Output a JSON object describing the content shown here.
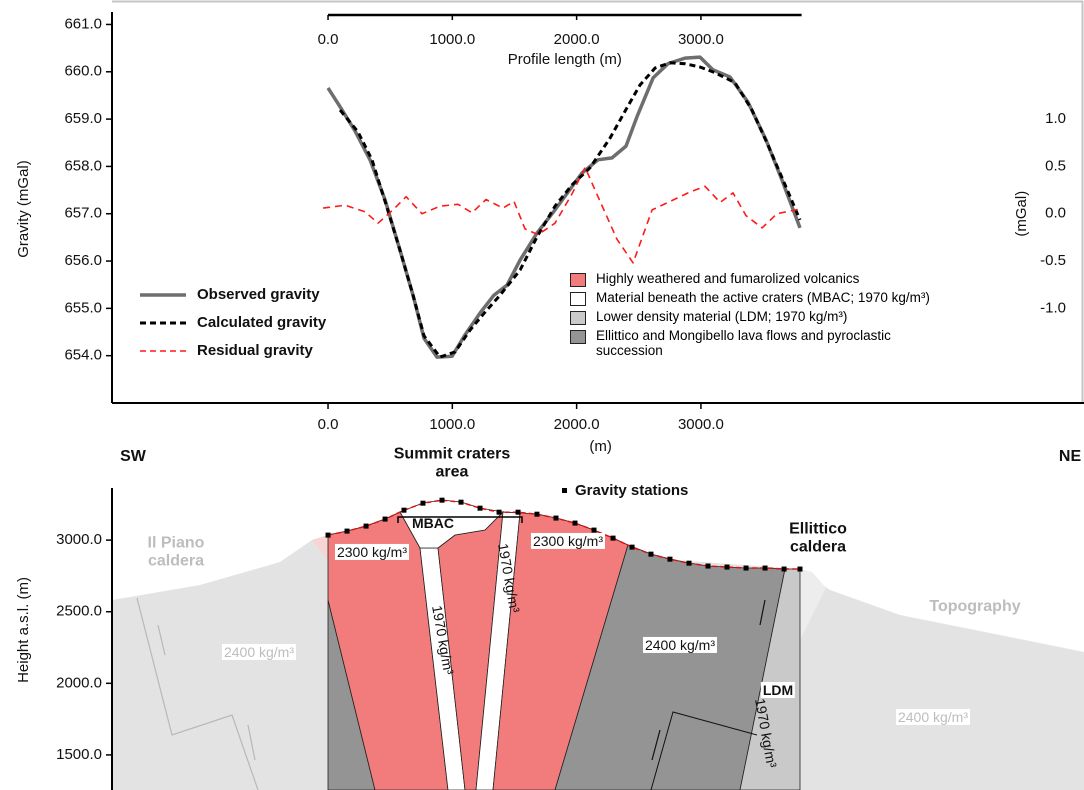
{
  "chart_data": [
    {
      "type": "line",
      "y_label": "Gravity (mGal)",
      "y2_label": "(mGal)",
      "x_label": "(m)",
      "x2_label": "Profile length (m)",
      "xlim": [
        -1738,
        6082
      ],
      "xticks": [
        {
          "value": 0,
          "label": "0.0"
        },
        {
          "value": 1000,
          "label": "1000.0"
        },
        {
          "value": 2000,
          "label": "2000.0"
        },
        {
          "value": 3000,
          "label": "3000.0"
        }
      ],
      "x2lim": [
        0,
        3810
      ],
      "x2ticks": [
        {
          "value": 0,
          "label": "0.0"
        },
        {
          "value": 1000,
          "label": "1000.0"
        },
        {
          "value": 2000,
          "label": "2000.0"
        },
        {
          "value": 3000,
          "label": "3000.0"
        }
      ],
      "ylim": [
        653,
        661.2
      ],
      "yticks": [
        {
          "value": 661,
          "label": "661.0"
        },
        {
          "value": 660,
          "label": "660.0"
        },
        {
          "value": 659,
          "label": "659.0"
        },
        {
          "value": 658,
          "label": "658.0"
        },
        {
          "value": 657,
          "label": "657.0"
        },
        {
          "value": 656,
          "label": "656.0"
        },
        {
          "value": 655,
          "label": "655.0"
        },
        {
          "value": 654,
          "label": "654.0"
        }
      ],
      "y2lim": [
        -2,
        2.1
      ],
      "y2ticks": [
        {
          "value": 1,
          "label": "1.0"
        },
        {
          "value": 0.5,
          "label": "0.5"
        },
        {
          "value": 0,
          "label": "0.0"
        },
        {
          "value": -0.5,
          "label": "-0.5"
        },
        {
          "value": -1,
          "label": "-1.0"
        }
      ],
      "legend": "lower left",
      "series": [
        {
          "name": "Observed gravity",
          "color": "#6e6e6e",
          "dashed": false,
          "x": [
            0,
            97,
            217,
            338,
            459,
            579,
            684,
            772,
            877,
            998,
            1102,
            1223,
            1335,
            1440,
            1545,
            1681,
            1826,
            2043,
            2172,
            2285,
            2397,
            2486,
            2615,
            2735,
            2872,
            2993,
            3097,
            3234,
            3379,
            3524,
            3652,
            3797
          ],
          "values": [
            659.66,
            659.26,
            658.75,
            658.14,
            657.29,
            656.23,
            655.28,
            654.37,
            653.97,
            653.99,
            654.44,
            654.9,
            655.28,
            655.49,
            656.02,
            656.59,
            657.08,
            657.86,
            658.14,
            658.18,
            658.43,
            659.05,
            659.87,
            660.17,
            660.29,
            660.31,
            660.04,
            659.89,
            659.36,
            658.56,
            657.71,
            656.7
          ]
        },
        {
          "name": "Calculated gravity",
          "color": "#000000",
          "dashed": true,
          "x": [
            97,
            241,
            354,
            467,
            579,
            684,
            772,
            901,
            1022,
            1142,
            1263,
            1384,
            1545,
            1681,
            1826,
            1963,
            2108,
            2269,
            2405,
            2510,
            2631,
            2751,
            2872,
            2993,
            3113,
            3274,
            3411,
            3540,
            3677,
            3797
          ],
          "values": [
            659.19,
            658.73,
            658.14,
            657.19,
            656.23,
            655.28,
            654.42,
            653.97,
            654.08,
            654.54,
            654.92,
            655.28,
            655.81,
            656.51,
            657.16,
            657.61,
            657.97,
            658.6,
            659.24,
            659.72,
            660.08,
            660.19,
            660.17,
            660.1,
            659.98,
            659.77,
            659.19,
            658.45,
            657.61,
            656.87
          ]
        },
        {
          "name": "Residual gravity",
          "color": "#ff1a1a",
          "dashed": true,
          "axis": "y2",
          "x": [
            -40,
            137,
            298,
            402,
            523,
            628,
            756,
            901,
            1046,
            1158,
            1271,
            1408,
            1496,
            1585,
            1689,
            1826,
            1963,
            2068,
            2172,
            2325,
            2454,
            2607,
            2735,
            2912,
            3033,
            3154,
            3258,
            3363,
            3492,
            3612,
            3797
          ],
          "values": [
            0.06,
            0.09,
            0.02,
            -0.1,
            0.04,
            0.18,
            0,
            0.08,
            0.1,
            0.01,
            0.15,
            0.06,
            0.13,
            -0.16,
            -0.22,
            -0.1,
            0.21,
            0.49,
            0.18,
            -0.27,
            -0.52,
            0.04,
            0.12,
            0.23,
            0.29,
            0.12,
            0.22,
            -0.02,
            -0.15,
            0,
            0.05
          ]
        }
      ]
    },
    {
      "type": "cross-section",
      "y_label": "Height a.s.l. (m)",
      "xlim": [
        -1738,
        6082
      ],
      "ylim": [
        1255,
        3350
      ],
      "yticks": [
        {
          "value": 3000,
          "label": "3000.0"
        },
        {
          "value": 2500,
          "label": "2500.0"
        },
        {
          "value": 2000,
          "label": "2000.0"
        },
        {
          "value": 1500,
          "label": "1500.0"
        }
      ],
      "stations": {
        "name": "Gravity stations",
        "line_color": "#e01010",
        "marker_color": "#000000",
        "x": [
          0,
          153,
          306,
          459,
          611,
          764,
          917,
          1070,
          1223,
          1376,
          1529,
          1681,
          1834,
          1987,
          2140,
          2293,
          2446,
          2598,
          2751,
          2904,
          3057,
          3210,
          3363,
          3516,
          3669,
          3797
        ],
        "values": [
          3035,
          3063,
          3098,
          3147,
          3209,
          3258,
          3279,
          3265,
          3223,
          3195,
          3195,
          3181,
          3154,
          3119,
          3070,
          3014,
          2951,
          2902,
          2867,
          2839,
          2819,
          2812,
          2805,
          2805,
          2798,
          2798
        ]
      },
      "legend": [
        {
          "label": "Highly weathered and fumarolized volcanics",
          "color": "#f27c7c"
        },
        {
          "label": "Material beneath the active craters (MBAC; 1970 kg/m³)",
          "color": "#ffffff"
        },
        {
          "label": "Lower density material (LDM; 1970 kg/m³)",
          "color": "#c9c9c9"
        },
        {
          "label": "Ellittico and Mongibello lava flows and pyroclastic succession",
          "color": "#949494"
        }
      ],
      "annotations": [
        "SW",
        "NE",
        "Summit craters area",
        "MBAC",
        "Ellittico caldera",
        "Il Piano caldera",
        "Topography",
        "2300 kg/m³",
        "2300 kg/m³",
        "1970 kg/m³",
        "1970 kg/m³",
        "2400 kg/m³",
        "2400 kg/m³",
        "2400 kg/m³",
        "LDM",
        "1970 kg/m³"
      ]
    }
  ]
}
